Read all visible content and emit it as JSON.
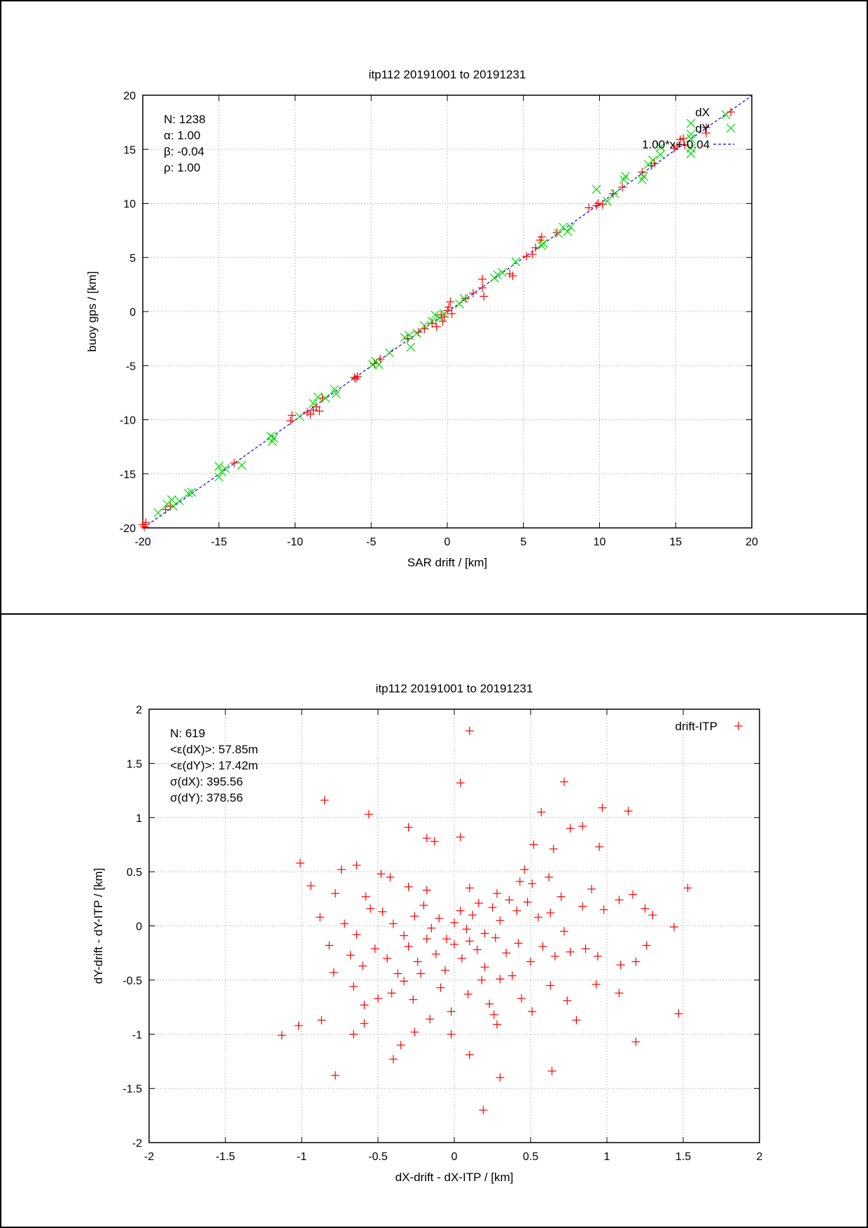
{
  "chart_data": [
    {
      "type": "scatter",
      "title": "itp112 20191001 to 20191231",
      "xlabel": "SAR drift / [km]",
      "ylabel": "buoy gps / [km]",
      "xlim": [
        -20,
        20
      ],
      "ylim": [
        -20,
        20
      ],
      "xticks": [
        "-20",
        "-15",
        "-10",
        "-5",
        "0",
        "5",
        "10",
        "15",
        "20"
      ],
      "yticks": [
        "-20",
        "-15",
        "-10",
        "-5",
        "0",
        "5",
        "10",
        "15",
        "20"
      ],
      "grid": true,
      "legend_position": "top-right",
      "stats": [
        "N: 1238",
        "α: 1.00",
        "β: -0.04",
        "ρ: 1.00"
      ],
      "series": [
        {
          "name": "dX",
          "marker": "+",
          "color": "#ff0000",
          "points": [
            [
              -20,
              -19.7
            ],
            [
              -19.8,
              -19.5
            ],
            [
              -19.9,
              -19.9
            ],
            [
              -18.5,
              -18.3
            ],
            [
              -18.2,
              -18
            ],
            [
              -14,
              -14
            ],
            [
              -10.3,
              -10.1
            ],
            [
              -10.2,
              -9.6
            ],
            [
              -9.2,
              -9.3
            ],
            [
              -9,
              -9.5
            ],
            [
              -8.8,
              -9.1
            ],
            [
              -8.6,
              -8.8
            ],
            [
              -8.4,
              -9.2
            ],
            [
              -8.2,
              -8
            ],
            [
              -6.1,
              -6.1
            ],
            [
              -6,
              -6.2
            ],
            [
              -5.9,
              -6
            ],
            [
              -4.8,
              -4.8
            ],
            [
              -4.4,
              -4.4
            ],
            [
              -2.6,
              -2.5
            ],
            [
              -1.9,
              -1.9
            ],
            [
              -1.5,
              -1.6
            ],
            [
              -1,
              -1.1
            ],
            [
              -0.7,
              -1.4
            ],
            [
              -0.4,
              -0.3
            ],
            [
              -0.3,
              -0.9
            ],
            [
              -0.2,
              -0.5
            ],
            [
              0,
              0.1
            ],
            [
              0.1,
              0.4
            ],
            [
              0.2,
              0.9
            ],
            [
              0.3,
              -0.2
            ],
            [
              1.2,
              1.2
            ],
            [
              1.7,
              1.7
            ],
            [
              2.3,
              2.2
            ],
            [
              2.4,
              1.4
            ],
            [
              2.3,
              3
            ],
            [
              4.1,
              3.5
            ],
            [
              4.3,
              3.3
            ],
            [
              5.2,
              5.1
            ],
            [
              5.6,
              5.3
            ],
            [
              5.8,
              5.9
            ],
            [
              6.1,
              6.6
            ],
            [
              6.2,
              6.9
            ],
            [
              7.2,
              7.3
            ],
            [
              9.3,
              9.6
            ],
            [
              9.8,
              9.8
            ],
            [
              9.9,
              10
            ],
            [
              10.2,
              9.9
            ],
            [
              10.9,
              10.9
            ],
            [
              11.5,
              11.5
            ],
            [
              12.8,
              12.9
            ],
            [
              13.4,
              13.5
            ],
            [
              13.6,
              13.7
            ],
            [
              14.9,
              15.1
            ],
            [
              15.1,
              15.3
            ],
            [
              15.3,
              15.9
            ],
            [
              15.5,
              16
            ],
            [
              15.6,
              15.4
            ],
            [
              17,
              16.5
            ],
            [
              17,
              17
            ]
          ]
        },
        {
          "name": "dY",
          "marker": "x",
          "color": "#00dd00",
          "points": [
            [
              -19,
              -18.6
            ],
            [
              -18.4,
              -17.8
            ],
            [
              -18.1,
              -17.4
            ],
            [
              -18,
              -18
            ],
            [
              -17.6,
              -17.5
            ],
            [
              -17,
              -16.8
            ],
            [
              -16.8,
              -16.7
            ],
            [
              -15,
              -14.3
            ],
            [
              -15,
              -15.3
            ],
            [
              -14.8,
              -14.8
            ],
            [
              -14.6,
              -14.5
            ],
            [
              -13.5,
              -14.2
            ],
            [
              -11.6,
              -11.5
            ],
            [
              -11.5,
              -12
            ],
            [
              -11.4,
              -11.7
            ],
            [
              -9.7,
              -9.7
            ],
            [
              -8.8,
              -8.5
            ],
            [
              -8.5,
              -7.9
            ],
            [
              -8,
              -8
            ],
            [
              -7.4,
              -7.2
            ],
            [
              -7.3,
              -7.6
            ],
            [
              -4.9,
              -4.9
            ],
            [
              -4.7,
              -4.6
            ],
            [
              -4.5,
              -4.9
            ],
            [
              -3.8,
              -3.8
            ],
            [
              -2.8,
              -2.4
            ],
            [
              -2.5,
              -2.2
            ],
            [
              -2.4,
              -3.3
            ],
            [
              -2,
              -2
            ],
            [
              -1.5,
              -1.3
            ],
            [
              -1,
              -0.9
            ],
            [
              -0.8,
              -0.3
            ],
            [
              -0.5,
              -0.6
            ],
            [
              -0.2,
              -0.2
            ],
            [
              1.1,
              1.2
            ],
            [
              0.8,
              0.7
            ],
            [
              3.1,
              3.1
            ],
            [
              3.3,
              3.4
            ],
            [
              3.6,
              3.6
            ],
            [
              4.5,
              4.6
            ],
            [
              6.2,
              6.1
            ],
            [
              6.3,
              6.3
            ],
            [
              7.3,
              7.2
            ],
            [
              7.6,
              7.8
            ],
            [
              7.9,
              7.4
            ],
            [
              8.1,
              7.8
            ],
            [
              9.8,
              11.3
            ],
            [
              10.5,
              10.2
            ],
            [
              11,
              10.9
            ],
            [
              11.6,
              12.2
            ],
            [
              11.7,
              12.5
            ],
            [
              12.8,
              12.2
            ],
            [
              12.9,
              12.5
            ],
            [
              13.2,
              13.6
            ],
            [
              13.5,
              14
            ],
            [
              14,
              14.5
            ],
            [
              14,
              15.2
            ],
            [
              16,
              16
            ],
            [
              16,
              17.4
            ],
            [
              16,
              14.6
            ],
            [
              16,
              15.1
            ],
            [
              16,
              16.4
            ],
            [
              18.3,
              18.2
            ]
          ]
        }
      ],
      "fit": {
        "name": "1.00*x+-0.04",
        "slope": 1.0,
        "intercept": -0.04,
        "color": "#0000ff"
      }
    },
    {
      "type": "scatter",
      "title": "itp112 20191001 to 20191231",
      "xlabel": "dX-drift - dX-ITP / [km]",
      "ylabel": "dY-drift - dY-ITP / [km]",
      "xlim": [
        -2,
        2
      ],
      "ylim": [
        -2,
        2
      ],
      "xticks": [
        "-2",
        "-1.5",
        "-1",
        "-0.5",
        "0",
        "0.5",
        "1",
        "1.5",
        "2"
      ],
      "yticks": [
        "-2",
        "-1.5",
        "-1",
        "-0.5",
        "0",
        "0.5",
        "1",
        "1.5",
        "2"
      ],
      "grid": true,
      "legend_position": "top-right",
      "stats": [
        "N: 619",
        "<ε(dX)>:  57.85m",
        "<ε(dY)>: 17.42m",
        "σ(dX):  395.56",
        "σ(dY):  378.56"
      ],
      "series": [
        {
          "name": "drift-ITP",
          "marker": "+",
          "color": "#ff0000",
          "points": [
            [
              0.1,
              1.8
            ],
            [
              0.04,
              1.32
            ],
            [
              0.72,
              1.33
            ],
            [
              -0.85,
              1.16
            ],
            [
              -0.56,
              1.03
            ],
            [
              0.57,
              1.05
            ],
            [
              0.97,
              1.09
            ],
            [
              1.14,
              1.06
            ],
            [
              -0.3,
              0.91
            ],
            [
              0.76,
              0.9
            ],
            [
              0.84,
              0.92
            ],
            [
              -0.18,
              0.81
            ],
            [
              -0.13,
              0.78
            ],
            [
              0.04,
              0.82
            ],
            [
              0.52,
              0.75
            ],
            [
              0.65,
              0.71
            ],
            [
              0.95,
              0.73
            ],
            [
              -1.01,
              0.58
            ],
            [
              -0.74,
              0.52
            ],
            [
              -0.64,
              0.56
            ],
            [
              -0.94,
              0.37
            ],
            [
              -0.78,
              0.3
            ],
            [
              -0.58,
              0.27
            ],
            [
              -0.48,
              0.48
            ],
            [
              -0.42,
              0.45
            ],
            [
              -0.3,
              0.36
            ],
            [
              -0.18,
              0.33
            ],
            [
              0.1,
              0.35
            ],
            [
              0.28,
              0.3
            ],
            [
              0.43,
              0.41
            ],
            [
              0.46,
              0.52
            ],
            [
              0.51,
              0.39
            ],
            [
              0.62,
              0.45
            ],
            [
              0.7,
              0.27
            ],
            [
              0.9,
              0.34
            ],
            [
              1.17,
              0.29
            ],
            [
              1.53,
              0.35
            ],
            [
              -0.88,
              0.08
            ],
            [
              -0.72,
              0.02
            ],
            [
              -0.64,
              -0.08
            ],
            [
              -0.55,
              0.16
            ],
            [
              -0.47,
              0.13
            ],
            [
              -0.4,
              0.02
            ],
            [
              -0.33,
              -0.09
            ],
            [
              -0.26,
              0.09
            ],
            [
              -0.2,
              0.19
            ],
            [
              -0.15,
              -0.02
            ],
            [
              -0.1,
              0.07
            ],
            [
              -0.05,
              -0.12
            ],
            [
              0,
              0.03
            ],
            [
              0.04,
              0.14
            ],
            [
              0.08,
              -0.03
            ],
            [
              0.12,
              0.1
            ],
            [
              0.16,
              0.21
            ],
            [
              0.2,
              -0.07
            ],
            [
              0.25,
              0.17
            ],
            [
              0.3,
              0.05
            ],
            [
              0.36,
              0.24
            ],
            [
              0.41,
              0.14
            ],
            [
              0.48,
              0.22
            ],
            [
              0.55,
              0.08
            ],
            [
              0.63,
              0.12
            ],
            [
              0.72,
              -0.05
            ],
            [
              0.84,
              0.18
            ],
            [
              0.98,
              0.15
            ],
            [
              1.08,
              0.24
            ],
            [
              1.25,
              0.16
            ],
            [
              1.3,
              0.1
            ],
            [
              1.44,
              -0.01
            ],
            [
              -0.82,
              -0.18
            ],
            [
              -0.68,
              -0.27
            ],
            [
              -0.6,
              -0.37
            ],
            [
              -0.52,
              -0.21
            ],
            [
              -0.44,
              -0.3
            ],
            [
              -0.37,
              -0.44
            ],
            [
              -0.3,
              -0.19
            ],
            [
              -0.24,
              -0.33
            ],
            [
              -0.18,
              -0.12
            ],
            [
              -0.12,
              -0.26
            ],
            [
              -0.06,
              -0.41
            ],
            [
              0,
              -0.17
            ],
            [
              0.05,
              -0.3
            ],
            [
              0.1,
              -0.14
            ],
            [
              0.15,
              -0.22
            ],
            [
              0.2,
              -0.38
            ],
            [
              0.27,
              -0.11
            ],
            [
              0.34,
              -0.25
            ],
            [
              0.42,
              -0.16
            ],
            [
              0.5,
              -0.33
            ],
            [
              0.58,
              -0.19
            ],
            [
              0.66,
              -0.28
            ],
            [
              0.76,
              -0.24
            ],
            [
              0.86,
              -0.21
            ],
            [
              0.94,
              -0.28
            ],
            [
              1.09,
              -0.36
            ],
            [
              1.19,
              -0.33
            ],
            [
              1.26,
              -0.18
            ],
            [
              -0.79,
              -0.43
            ],
            [
              -0.66,
              -0.56
            ],
            [
              -0.59,
              -0.73
            ],
            [
              -0.5,
              -0.67
            ],
            [
              -0.41,
              -0.62
            ],
            [
              -0.33,
              -0.51
            ],
            [
              -0.27,
              -0.68
            ],
            [
              -0.22,
              -0.44
            ],
            [
              -0.16,
              -0.86
            ],
            [
              -0.09,
              -0.57
            ],
            [
              -0.02,
              -0.79
            ],
            [
              0.09,
              -0.63
            ],
            [
              0.18,
              -0.5
            ],
            [
              0.23,
              -0.72
            ],
            [
              0.3,
              -0.49
            ],
            [
              0.38,
              -0.46
            ],
            [
              0.44,
              -0.67
            ],
            [
              0.51,
              -0.79
            ],
            [
              0.63,
              -0.55
            ],
            [
              0.74,
              -0.69
            ],
            [
              0.8,
              -0.87
            ],
            [
              0.93,
              -0.54
            ],
            [
              1.08,
              -0.62
            ],
            [
              -0.87,
              -0.87
            ],
            [
              -1.02,
              -0.92
            ],
            [
              -1.13,
              -1.01
            ],
            [
              -0.66,
              -1
            ],
            [
              -0.59,
              -0.9
            ],
            [
              -0.4,
              -1.23
            ],
            [
              -0.35,
              -1.1
            ],
            [
              -0.26,
              -0.98
            ],
            [
              -0.02,
              -1
            ],
            [
              0.26,
              -0.82
            ],
            [
              0.28,
              -0.91
            ],
            [
              0.1,
              -1.19
            ],
            [
              1.19,
              -1.07
            ],
            [
              1.47,
              -0.81
            ],
            [
              -0.78,
              -1.38
            ],
            [
              0.64,
              -1.34
            ],
            [
              0.3,
              -1.4
            ],
            [
              0.19,
              -1.7
            ]
          ]
        }
      ]
    }
  ]
}
